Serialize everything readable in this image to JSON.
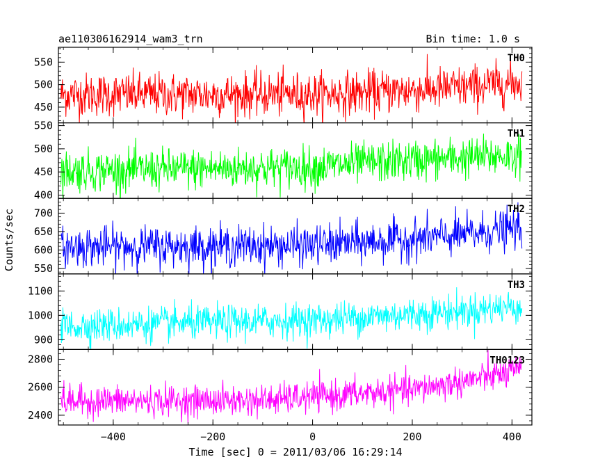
{
  "chart_data": {
    "type": "line",
    "title": "ae110306162914_wam3_trn",
    "subtitle": "Bin time: 1.0 s",
    "xlabel": "Time [sec] 0 = 2011/03/06 16:29:14",
    "ylabel": "Counts/sec",
    "x_range": [
      -505,
      420
    ],
    "xlim": [
      -510,
      440
    ],
    "x_ticks": [
      -400,
      -200,
      0,
      200,
      400
    ],
    "x_tick_labels": [
      "−400",
      "−200",
      "0",
      "200",
      "400"
    ],
    "bin_time_s": 1.0,
    "panels": [
      {
        "name": "TH0",
        "color": "#ff0000",
        "ylim": [
          415,
          583
        ],
        "y_ticks": [
          450,
          500,
          550
        ],
        "trend": [
          [
            -505,
            478
          ],
          [
            0,
            478
          ],
          [
            100,
            482
          ],
          [
            280,
            492
          ],
          [
            420,
            505
          ]
        ],
        "noise_sd": 24
      },
      {
        "name": "TH1",
        "color": "#00ff00",
        "ylim": [
          393,
          556
        ],
        "y_ticks": [
          400,
          450,
          500,
          550
        ],
        "trend": [
          [
            -505,
            452
          ],
          [
            0,
            460
          ],
          [
            150,
            472
          ],
          [
            300,
            480
          ],
          [
            420,
            487
          ]
        ],
        "noise_sd": 22
      },
      {
        "name": "TH2",
        "color": "#0000ff",
        "ylim": [
          535,
          740
        ],
        "y_ticks": [
          550,
          600,
          650,
          700
        ],
        "trend": [
          [
            -505,
            608
          ],
          [
            0,
            612
          ],
          [
            150,
            625
          ],
          [
            300,
            640
          ],
          [
            420,
            660
          ]
        ],
        "noise_sd": 27
      },
      {
        "name": "TH3",
        "color": "#00ffff",
        "ylim": [
          860,
          1170
        ],
        "y_ticks": [
          900,
          1000,
          1100
        ],
        "trend": [
          [
            -505,
            955
          ],
          [
            0,
            980
          ],
          [
            200,
            1005
          ],
          [
            320,
            1020
          ],
          [
            420,
            1040
          ]
        ],
        "noise_sd": 35
      },
      {
        "name": "TH0123",
        "color": "#ff00ff",
        "ylim": [
          2330,
          2870
        ],
        "y_ticks": [
          2400,
          2600,
          2800
        ],
        "trend": [
          [
            -505,
            2500
          ],
          [
            -100,
            2505
          ],
          [
            0,
            2530
          ],
          [
            200,
            2580
          ],
          [
            300,
            2640
          ],
          [
            420,
            2720
          ]
        ],
        "noise_sd": 55
      }
    ]
  }
}
